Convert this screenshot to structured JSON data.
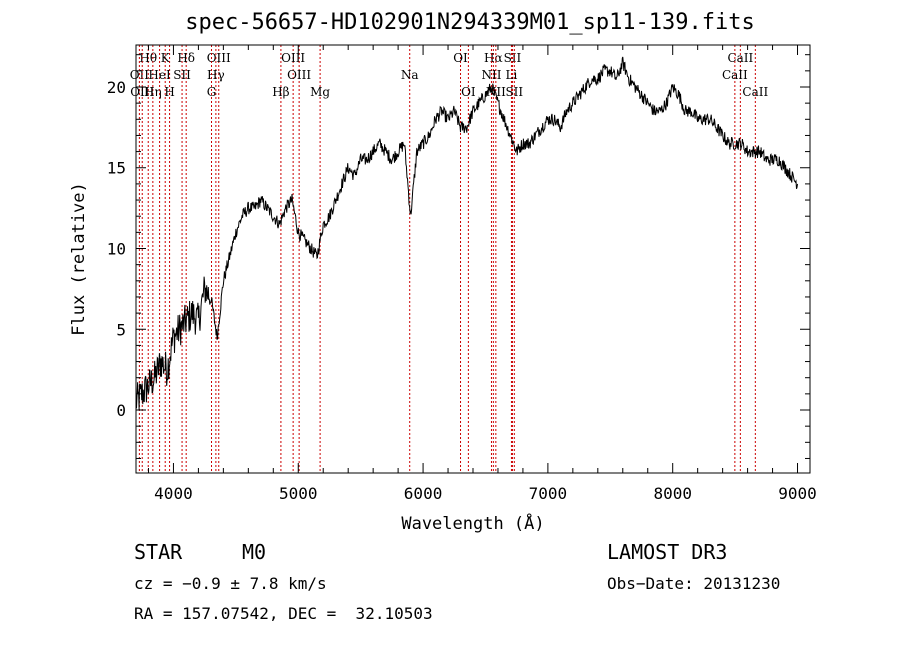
{
  "chart_data": {
    "type": "line",
    "title": "spec-56657-HD102901N294339M01_sp11-139.fits",
    "xlabel": "Wavelength (Å)",
    "ylabel": "Flux (relative)",
    "xlim": [
      3700,
      9100
    ],
    "ylim": [
      -3.9,
      22.6
    ],
    "xticks": [
      4000,
      5000,
      6000,
      7000,
      8000,
      9000
    ],
    "yticks": [
      0,
      5,
      10,
      15,
      20
    ],
    "series": [
      {
        "x": [
          3700,
          3750,
          3800,
          3850,
          3900,
          3950,
          4000,
          4050,
          4100,
          4150,
          4200,
          4250,
          4300,
          4350,
          4400,
          4450,
          4500,
          4550,
          4600,
          4650,
          4700,
          4750,
          4800,
          4850,
          4900,
          4950,
          5000,
          5050,
          5100,
          5150,
          5200,
          5250,
          5300,
          5350,
          5400,
          5450,
          5500,
          5550,
          5600,
          5650,
          5700,
          5750,
          5800,
          5850,
          5900,
          5950,
          6000,
          6050,
          6100,
          6150,
          6200,
          6250,
          6300,
          6350,
          6400,
          6450,
          6500,
          6550,
          6600,
          6650,
          6700,
          6750,
          6800,
          6850,
          6900,
          6950,
          7000,
          7050,
          7100,
          7150,
          7200,
          7250,
          7300,
          7350,
          7400,
          7450,
          7500,
          7550,
          7600,
          7650,
          7700,
          7750,
          7800,
          7850,
          7900,
          7950,
          8000,
          8050,
          8100,
          8150,
          8200,
          8250,
          8300,
          8350,
          8400,
          8450,
          8500,
          8550,
          8600,
          8650,
          8700,
          8750,
          8800,
          8850,
          8900,
          8950,
          9000
        ],
        "y": [
          0.5,
          1.0,
          1.5,
          2.0,
          3.0,
          2.5,
          4.5,
          5.0,
          5.5,
          6.0,
          5.5,
          7.5,
          7.0,
          4.5,
          8.0,
          9.5,
          11.0,
          12.0,
          12.5,
          12.5,
          13.0,
          12.5,
          12.0,
          11.5,
          12.5,
          13.0,
          11.0,
          10.5,
          10.0,
          9.5,
          11.5,
          12.0,
          13.0,
          14.0,
          15.0,
          14.5,
          15.5,
          15.5,
          16.0,
          16.5,
          16.0,
          15.5,
          16.0,
          16.5,
          12.0,
          16.0,
          16.5,
          17.0,
          18.0,
          18.5,
          18.0,
          18.5,
          17.5,
          17.5,
          18.5,
          19.0,
          19.5,
          20.0,
          19.0,
          18.0,
          17.0,
          16.0,
          16.5,
          16.5,
          17.0,
          17.5,
          18.0,
          18.0,
          17.5,
          18.5,
          19.0,
          19.5,
          20.0,
          20.5,
          20.5,
          21.0,
          21.0,
          20.5,
          21.5,
          20.5,
          20.0,
          19.5,
          19.0,
          18.5,
          18.5,
          19.0,
          20.0,
          19.5,
          18.5,
          18.5,
          18.0,
          18.0,
          18.0,
          17.5,
          17.0,
          16.5,
          16.5,
          16.5,
          16.0,
          16.0,
          16.0,
          15.5,
          15.5,
          15.5,
          15.0,
          14.5,
          14.0
        ]
      }
    ],
    "line_markers": [
      {
        "label": "Hθ",
        "x": 3798,
        "row": 1
      },
      {
        "label": "OII",
        "x": 3727,
        "row": 2
      },
      {
        "label": "OIII",
        "x": 3750,
        "row": 3
      },
      {
        "label": "Hη",
        "x": 3835,
        "row": 3
      },
      {
        "label": "K",
        "x": 3934,
        "row": 1
      },
      {
        "label": "HeI",
        "x": 3889,
        "row": 2
      },
      {
        "label": "SII",
        "x": 4069,
        "row": 2
      },
      {
        "label": "H",
        "x": 3969,
        "row": 3
      },
      {
        "label": "Hδ",
        "x": 4102,
        "row": 1
      },
      {
        "label": "OIII",
        "x": 4363,
        "row": 1
      },
      {
        "label": "Hγ",
        "x": 4340,
        "row": 2
      },
      {
        "label": "G",
        "x": 4305,
        "row": 3
      },
      {
        "label": "Hβ",
        "x": 4861,
        "row": 3
      },
      {
        "label": "OIII",
        "x": 4959,
        "row": 1
      },
      {
        "label": "OIII",
        "x": 5007,
        "row": 2
      },
      {
        "label": "Mg",
        "x": 5175,
        "row": 3
      },
      {
        "label": "Na",
        "x": 5893,
        "row": 2
      },
      {
        "label": "OI",
        "x": 6300,
        "row": 1
      },
      {
        "label": "OI",
        "x": 6363,
        "row": 3
      },
      {
        "label": "Hα",
        "x": 6563,
        "row": 1
      },
      {
        "label": "NII",
        "x": 6548,
        "row": 2
      },
      {
        "label": "NII",
        "x": 6583,
        "row": 3
      },
      {
        "label": "SII",
        "x": 6716,
        "row": 1
      },
      {
        "label": "Li",
        "x": 6708,
        "row": 2
      },
      {
        "label": "SII",
        "x": 6731,
        "row": 3
      },
      {
        "label": "CaII",
        "x": 8542,
        "row": 1
      },
      {
        "label": "CaII",
        "x": 8498,
        "row": 2
      },
      {
        "label": "CaII",
        "x": 8662,
        "row": 3
      }
    ]
  },
  "info": {
    "object_class": "STAR",
    "subclass": "M0",
    "survey": "LAMOST DR3",
    "cz": "cz = −0.9 ± 7.8 km/s",
    "obs_date": "Obs−Date: 20131230",
    "coords": "RA = 157.07542, DEC =  32.10503"
  },
  "colors": {
    "spectrum": "#000000",
    "marker_lines": "#cc0000",
    "background": "#ffffff"
  }
}
